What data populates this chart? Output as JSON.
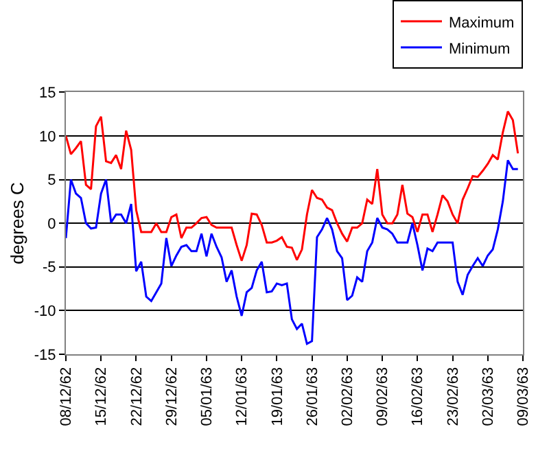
{
  "chart_data": {
    "type": "line",
    "ylabel": "degrees C",
    "x": [
      "1962-12-08",
      "1962-12-09",
      "1962-12-10",
      "1962-12-11",
      "1962-12-12",
      "1962-12-13",
      "1962-12-14",
      "1962-12-15",
      "1962-12-16",
      "1962-12-17",
      "1962-12-18",
      "1962-12-19",
      "1962-12-20",
      "1962-12-21",
      "1962-12-22",
      "1962-12-23",
      "1962-12-24",
      "1962-12-25",
      "1962-12-26",
      "1962-12-27",
      "1962-12-28",
      "1962-12-29",
      "1962-12-30",
      "1962-12-31",
      "1963-01-01",
      "1963-01-02",
      "1963-01-03",
      "1963-01-04",
      "1963-01-05",
      "1963-01-06",
      "1963-01-07",
      "1963-01-08",
      "1963-01-09",
      "1963-01-10",
      "1963-01-11",
      "1963-01-12",
      "1963-01-13",
      "1963-01-14",
      "1963-01-15",
      "1963-01-16",
      "1963-01-17",
      "1963-01-18",
      "1963-01-19",
      "1963-01-20",
      "1963-01-21",
      "1963-01-22",
      "1963-01-23",
      "1963-01-24",
      "1963-01-25",
      "1963-01-26",
      "1963-01-27",
      "1963-01-28",
      "1963-01-29",
      "1963-01-30",
      "1963-01-31",
      "1963-02-01",
      "1963-02-02",
      "1963-02-03",
      "1963-02-04",
      "1963-02-05",
      "1963-02-06",
      "1963-02-07",
      "1963-02-08",
      "1963-02-09",
      "1963-02-10",
      "1963-02-11",
      "1963-02-12",
      "1963-02-13",
      "1963-02-14",
      "1963-02-15",
      "1963-02-16",
      "1963-02-17",
      "1963-02-18",
      "1963-02-19",
      "1963-02-20",
      "1963-02-21",
      "1963-02-22",
      "1963-02-23",
      "1963-02-24",
      "1963-02-25",
      "1963-02-26",
      "1963-02-27",
      "1963-02-28",
      "1963-03-01",
      "1963-03-02",
      "1963-03-03",
      "1963-03-04",
      "1963-03-05",
      "1963-03-06",
      "1963-03-07",
      "1963-03-08"
    ],
    "xlim": [
      "1962-12-08",
      "1963-03-09"
    ],
    "xticks": [
      {
        "value": "1962-12-08",
        "label": "08/12/62"
      },
      {
        "value": "1962-12-15",
        "label": "15/12/62"
      },
      {
        "value": "1962-12-22",
        "label": "22/12/62"
      },
      {
        "value": "1962-12-29",
        "label": "29/12/62"
      },
      {
        "value": "1963-01-05",
        "label": "05/01/63"
      },
      {
        "value": "1963-01-12",
        "label": "12/01/63"
      },
      {
        "value": "1963-01-19",
        "label": "19/01/63"
      },
      {
        "value": "1963-01-26",
        "label": "26/01/63"
      },
      {
        "value": "1963-02-02",
        "label": "02/02/63"
      },
      {
        "value": "1963-02-09",
        "label": "09/02/63"
      },
      {
        "value": "1963-02-16",
        "label": "16/02/63"
      },
      {
        "value": "1963-02-23",
        "label": "23/02/63"
      },
      {
        "value": "1963-03-02",
        "label": "02/03/63"
      },
      {
        "value": "1963-03-09",
        "label": "09/03/63"
      }
    ],
    "ylim": [
      -15,
      15
    ],
    "yticks": [
      -15,
      -10,
      -5,
      0,
      5,
      10,
      15
    ],
    "grid": "y",
    "legend": "top right",
    "marker": "none",
    "line_style": "solid",
    "series": [
      {
        "name": "Maximum",
        "color": "#ff0000",
        "values": [
          10,
          7.9,
          8.6,
          9.4,
          4.4,
          3.9,
          11.1,
          12.2,
          7.1,
          6.9,
          7.8,
          6.2,
          10.6,
          8.4,
          1.5,
          -1,
          -1,
          -1,
          0,
          -1,
          -1,
          0.7,
          1,
          -1.7,
          -0.5,
          -0.5,
          0,
          0.6,
          0.7,
          -0.2,
          -0.5,
          -0.5,
          -0.5,
          -0.5,
          -2.5,
          -4.3,
          -2.5,
          1.1,
          1,
          -0.2,
          -2.2,
          -2.2,
          -2,
          -1.6,
          -2.7,
          -2.8,
          -4.2,
          -3,
          1,
          3.8,
          2.9,
          2.7,
          1.8,
          1.5,
          0,
          -1.2,
          -2.1,
          -0.5,
          -0.5,
          0,
          2.7,
          2.2,
          6.2,
          1,
          0,
          0,
          1,
          4.4,
          1.1,
          0.7,
          -1,
          1,
          1,
          -1,
          1,
          3.2,
          2.5,
          1,
          0,
          2.7,
          4,
          5.4,
          5.3,
          6,
          6.8,
          7.8,
          7.3,
          10.4,
          12.8,
          11.8,
          8
        ]
      },
      {
        "name": "Minimum",
        "color": "#0000ff",
        "values": [
          -1.7,
          5,
          3.4,
          2.9,
          0,
          -0.6,
          -0.5,
          3.4,
          5,
          0.1,
          1,
          1,
          0,
          2.2,
          -5.5,
          -4.4,
          -8.4,
          -8.9,
          -7.9,
          -6.9,
          -1.7,
          -4.9,
          -3.7,
          -2.7,
          -2.5,
          -3.2,
          -3.2,
          -1.2,
          -3.8,
          -1.2,
          -2.7,
          -3.9,
          -6.7,
          -5.4,
          -8.4,
          -10.6,
          -7.9,
          -7.4,
          -5.4,
          -4.4,
          -7.9,
          -7.8,
          -6.9,
          -7.1,
          -6.9,
          -11,
          -12.1,
          -11.5,
          -13.8,
          -13.5,
          -1.6,
          -0.7,
          0.6,
          -0.7,
          -3.2,
          -4,
          -8.8,
          -8.3,
          -6.2,
          -6.7,
          -3.2,
          -2.2,
          0.6,
          -0.5,
          -0.7,
          -1.2,
          -2.2,
          -2.2,
          -2.2,
          0,
          -2.5,
          -5.4,
          -2.9,
          -3.2,
          -2.2,
          -2.2,
          -2.2,
          -2.2,
          -6.7,
          -8.2,
          -5.9,
          -4.9,
          -4,
          -4.9,
          -3.7,
          -3,
          -0.7,
          2.5,
          7.2,
          6.2,
          6.2
        ]
      }
    ]
  }
}
